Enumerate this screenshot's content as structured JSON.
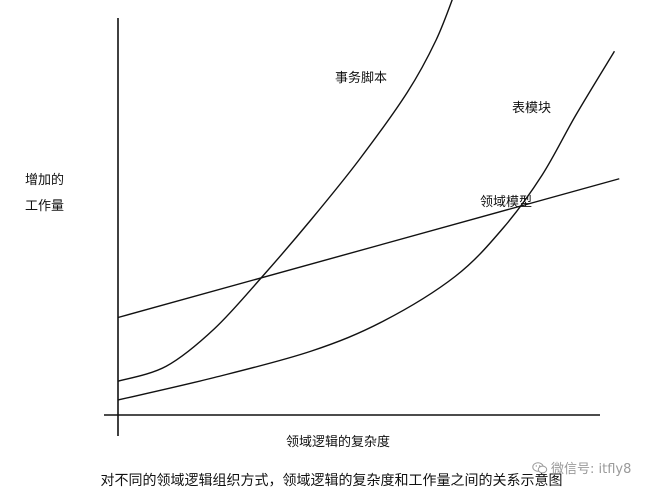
{
  "chart_data": {
    "type": "line",
    "title": "",
    "ylabel": [
      "增加的",
      "工作量"
    ],
    "xlabel": "领域逻辑的复杂度",
    "xlim": [
      0,
      100
    ],
    "ylim": [
      0,
      100
    ],
    "grid": false,
    "legend": "inline labels",
    "series": [
      {
        "name": "事务脚本",
        "x": [
          0,
          10,
          20,
          30,
          40,
          50,
          60,
          66,
          70
        ],
        "y": [
          9,
          13,
          23,
          37,
          52,
          68,
          86,
          100,
          113
        ]
      },
      {
        "name": "表模块",
        "x": [
          0,
          20,
          40,
          55,
          70,
          80,
          88,
          95,
          103
        ],
        "y": [
          4,
          10,
          17,
          25,
          37,
          50,
          64,
          80,
          97
        ]
      },
      {
        "name": "领域模型",
        "x": [
          0,
          104
        ],
        "y": [
          26,
          63
        ]
      }
    ]
  },
  "caption": "对不同的领域逻辑组织方式，领域逻辑的复杂度和工作量之间的关系示意图",
  "watermark": "微信号: itfly8",
  "colors": {
    "line": "#111111",
    "watermark": "#9a9a9a"
  }
}
